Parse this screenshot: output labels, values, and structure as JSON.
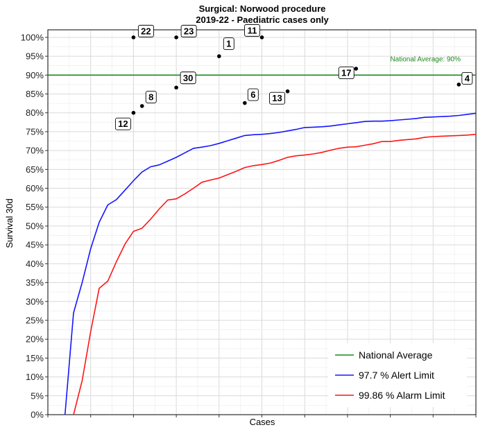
{
  "chart_data": {
    "type": "scatter",
    "title": "Surgical: Norwood procedure",
    "subtitle": "2019-22 - Paediatric cases only",
    "xlabel": "Cases",
    "ylabel": "Survival 30d",
    "xlim": [
      0,
      50
    ],
    "ylim": [
      0,
      1.02
    ],
    "y_ticks": [
      0,
      0.05,
      0.1,
      0.15,
      0.2,
      0.25,
      0.3,
      0.35,
      0.4,
      0.45,
      0.5,
      0.55,
      0.6,
      0.65,
      0.7,
      0.75,
      0.8,
      0.85,
      0.9,
      0.95,
      1.0
    ],
    "y_tick_labels": [
      "0%",
      "5%",
      "10%",
      "15%",
      "20%",
      "25%",
      "30%",
      "35%",
      "40%",
      "45%",
      "50%",
      "55%",
      "60%",
      "65%",
      "70%",
      "75%",
      "80%",
      "85%",
      "90%",
      "95%",
      "100%"
    ],
    "grid": true,
    "national_average": {
      "value": 0.9,
      "label": "National Average: 90%",
      "color": "#1a8a1a"
    },
    "points": [
      {
        "label": "22",
        "x": 10,
        "y": 1.0
      },
      {
        "label": "23",
        "x": 15,
        "y": 1.0
      },
      {
        "label": "1",
        "x": 20,
        "y": 0.95
      },
      {
        "label": "11",
        "x": 25,
        "y": 1.0
      },
      {
        "label": "30",
        "x": 15,
        "y": 0.867
      },
      {
        "label": "8",
        "x": 11,
        "y": 0.818
      },
      {
        "label": "12",
        "x": 10,
        "y": 0.8
      },
      {
        "label": "6",
        "x": 23,
        "y": 0.826
      },
      {
        "label": "13",
        "x": 28,
        "y": 0.857
      },
      {
        "label": "17",
        "x": 36,
        "y": 0.917
      },
      {
        "label": "4",
        "x": 48,
        "y": 0.875
      }
    ],
    "series": [
      {
        "name": "97.7 %  Alert Limit",
        "color": "#1414ff",
        "x": [
          2,
          3,
          4,
          5,
          6,
          7,
          8,
          9,
          10,
          11,
          12,
          13,
          14,
          15,
          16,
          17,
          18,
          19,
          20,
          21,
          22,
          23,
          24,
          25,
          26,
          27,
          28,
          29,
          30,
          31,
          32,
          33,
          34,
          35,
          36,
          37,
          38,
          39,
          40,
          41,
          42,
          43,
          44,
          45,
          46,
          47,
          48,
          49,
          50
        ],
        "y": [
          0,
          0.27,
          0.35,
          0.44,
          0.51,
          0.556,
          0.57,
          0.595,
          0.62,
          0.643,
          0.657,
          0.662,
          0.672,
          0.682,
          0.694,
          0.706,
          0.709,
          0.713,
          0.719,
          0.726,
          0.733,
          0.74,
          0.742,
          0.743,
          0.745,
          0.748,
          0.752,
          0.756,
          0.761,
          0.762,
          0.763,
          0.765,
          0.768,
          0.771,
          0.774,
          0.777,
          0.778,
          0.778,
          0.779,
          0.781,
          0.783,
          0.785,
          0.788,
          0.789,
          0.79,
          0.791,
          0.793,
          0.796,
          0.799
        ]
      },
      {
        "name": "99.86 %  Alarm Limit",
        "color": "#ff1414",
        "x": [
          3,
          4,
          5,
          6,
          7,
          8,
          9,
          10,
          11,
          12,
          13,
          14,
          15,
          16,
          17,
          18,
          19,
          20,
          21,
          22,
          23,
          24,
          25,
          26,
          27,
          28,
          29,
          30,
          31,
          32,
          33,
          34,
          35,
          36,
          37,
          38,
          39,
          40,
          41,
          42,
          43,
          44,
          45,
          46,
          47,
          48,
          49,
          50
        ],
        "y": [
          0,
          0.09,
          0.22,
          0.335,
          0.354,
          0.405,
          0.452,
          0.486,
          0.494,
          0.518,
          0.545,
          0.569,
          0.572,
          0.585,
          0.6,
          0.616,
          0.622,
          0.627,
          0.636,
          0.645,
          0.655,
          0.66,
          0.663,
          0.667,
          0.674,
          0.682,
          0.686,
          0.688,
          0.691,
          0.695,
          0.701,
          0.706,
          0.709,
          0.71,
          0.714,
          0.718,
          0.724,
          0.724,
          0.727,
          0.729,
          0.731,
          0.735,
          0.737,
          0.738,
          0.739,
          0.74,
          0.741,
          0.743
        ]
      }
    ],
    "legend": {
      "placement": "bottom-right",
      "entries": [
        {
          "label": "National Average",
          "color": "#1a8a1a"
        },
        {
          "label": "97.7 %  Alert Limit",
          "color": "#1414ff"
        },
        {
          "label": "99.86 %  Alarm Limit",
          "color": "#ff1414"
        }
      ]
    }
  }
}
